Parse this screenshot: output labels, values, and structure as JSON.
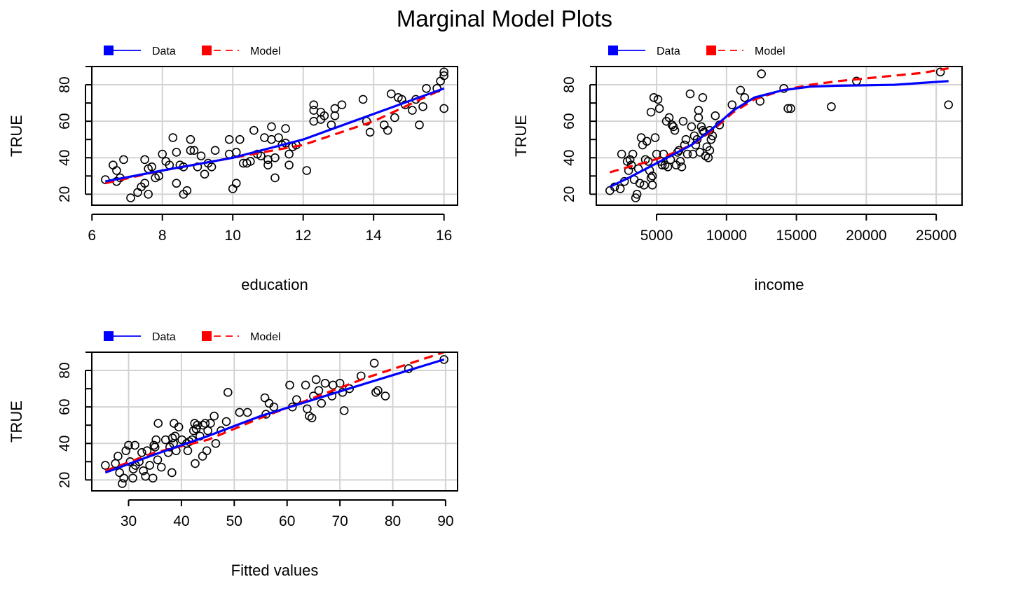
{
  "title": "Marginal Model Plots",
  "legend": {
    "data_label": "Data",
    "model_label": "Model",
    "data_color": "#0000ff",
    "model_color": "#ff0000"
  },
  "chart_data": [
    {
      "type": "scatter",
      "xlabel": "education",
      "ylabel": "TRUE",
      "xlim": [
        6.38,
        16.0
      ],
      "ylim": [
        14,
        90
      ],
      "xticks": [
        6,
        8,
        10,
        12,
        14,
        16
      ],
      "xtick_labels": [
        "6",
        "8",
        "10",
        "12",
        "14",
        "16"
      ],
      "yticks": [
        20,
        40,
        60,
        80
      ],
      "ytick_labels": [
        "20",
        "40",
        "60",
        "80"
      ],
      "grid": true,
      "legend_position": "top-left",
      "points": [
        [
          6.38,
          28
        ],
        [
          6.6,
          36
        ],
        [
          6.7,
          33
        ],
        [
          6.7,
          27
        ],
        [
          6.8,
          29
        ],
        [
          6.9,
          39
        ],
        [
          7.1,
          18
        ],
        [
          7.3,
          21
        ],
        [
          7.4,
          24
        ],
        [
          7.5,
          26
        ],
        [
          7.5,
          39
        ],
        [
          7.6,
          34
        ],
        [
          7.6,
          20
        ],
        [
          7.7,
          35
        ],
        [
          7.8,
          29
        ],
        [
          7.9,
          30
        ],
        [
          8.0,
          42
        ],
        [
          8.1,
          38
        ],
        [
          8.2,
          36
        ],
        [
          8.3,
          51
        ],
        [
          8.4,
          43
        ],
        [
          8.4,
          26
        ],
        [
          8.5,
          36
        ],
        [
          8.6,
          35
        ],
        [
          8.6,
          20
        ],
        [
          8.7,
          22
        ],
        [
          8.8,
          44
        ],
        [
          8.8,
          50
        ],
        [
          8.9,
          44
        ],
        [
          9.0,
          35
        ],
        [
          9.1,
          41
        ],
        [
          9.2,
          31
        ],
        [
          9.3,
          37
        ],
        [
          9.4,
          35
        ],
        [
          9.5,
          44
        ],
        [
          9.9,
          42
        ],
        [
          9.9,
          50
        ],
        [
          10.0,
          23
        ],
        [
          10.1,
          26
        ],
        [
          10.1,
          43
        ],
        [
          10.2,
          50
        ],
        [
          10.3,
          37
        ],
        [
          10.4,
          37
        ],
        [
          10.5,
          38
        ],
        [
          10.6,
          55
        ],
        [
          10.7,
          42
        ],
        [
          10.8,
          41
        ],
        [
          10.9,
          51
        ],
        [
          11.0,
          36
        ],
        [
          11.0,
          39
        ],
        [
          11.1,
          57
        ],
        [
          11.1,
          50
        ],
        [
          11.2,
          40
        ],
        [
          11.2,
          29
        ],
        [
          11.3,
          51
        ],
        [
          11.4,
          47
        ],
        [
          11.5,
          48
        ],
        [
          11.5,
          56
        ],
        [
          11.6,
          36
        ],
        [
          11.6,
          42
        ],
        [
          11.7,
          46
        ],
        [
          11.8,
          47
        ],
        [
          12.1,
          33
        ],
        [
          12.3,
          60
        ],
        [
          12.3,
          69
        ],
        [
          12.3,
          66
        ],
        [
          12.5,
          61
        ],
        [
          12.5,
          65
        ],
        [
          12.6,
          63
        ],
        [
          12.8,
          58
        ],
        [
          12.9,
          63
        ],
        [
          12.9,
          67
        ],
        [
          13.1,
          69
        ],
        [
          13.7,
          72
        ],
        [
          13.8,
          60
        ],
        [
          13.9,
          54
        ],
        [
          14.3,
          58
        ],
        [
          14.4,
          55
        ],
        [
          14.5,
          75
        ],
        [
          14.6,
          62
        ],
        [
          14.7,
          73
        ],
        [
          14.8,
          72
        ],
        [
          14.9,
          69
        ],
        [
          15.1,
          66
        ],
        [
          15.2,
          72
        ],
        [
          15.3,
          58
        ],
        [
          15.4,
          68
        ],
        [
          15.5,
          78
        ],
        [
          15.8,
          78
        ],
        [
          15.9,
          82
        ],
        [
          16.0,
          87
        ],
        [
          16.0,
          85
        ],
        [
          16.0,
          67
        ]
      ],
      "series": [
        {
          "name": "Data",
          "x": [
            6.38,
            8,
            10,
            12,
            14,
            16
          ],
          "y": [
            27,
            33,
            40,
            50,
            64,
            78
          ]
        },
        {
          "name": "Model",
          "x": [
            6.38,
            8,
            10,
            12,
            14,
            16
          ],
          "y": [
            26,
            33,
            40,
            47,
            60,
            78
          ]
        }
      ]
    },
    {
      "type": "scatter",
      "xlabel": "income",
      "ylabel": "TRUE",
      "xlim": [
        1656,
        25879
      ],
      "ylim": [
        14,
        90
      ],
      "xticks": [
        5000,
        10000,
        15000,
        20000,
        25000
      ],
      "xtick_labels": [
        "5000",
        "10000",
        "15000",
        "20000",
        "25000"
      ],
      "yticks": [
        20,
        40,
        60,
        80
      ],
      "ytick_labels": [
        "20",
        "40",
        "60",
        "80"
      ],
      "grid": true,
      "legend_position": "top-left",
      "points": [
        [
          1656,
          22
        ],
        [
          2000,
          24
        ],
        [
          2400,
          23
        ],
        [
          2500,
          42
        ],
        [
          2700,
          27
        ],
        [
          2900,
          38
        ],
        [
          3000,
          33
        ],
        [
          3100,
          39
        ],
        [
          3200,
          36
        ],
        [
          3300,
          42
        ],
        [
          3400,
          28
        ],
        [
          3500,
          18
        ],
        [
          3600,
          20
        ],
        [
          3700,
          34
        ],
        [
          3800,
          26
        ],
        [
          3900,
          51
        ],
        [
          4000,
          47
        ],
        [
          4100,
          25
        ],
        [
          4200,
          39
        ],
        [
          4300,
          49
        ],
        [
          4400,
          38
        ],
        [
          4500,
          33
        ],
        [
          4600,
          65
        ],
        [
          4600,
          29
        ],
        [
          4700,
          25
        ],
        [
          4700,
          30
        ],
        [
          4800,
          73
        ],
        [
          4900,
          51
        ],
        [
          5000,
          42
        ],
        [
          5100,
          72
        ],
        [
          5200,
          67
        ],
        [
          5300,
          38
        ],
        [
          5400,
          36
        ],
        [
          5500,
          42
        ],
        [
          5600,
          36
        ],
        [
          5700,
          60
        ],
        [
          5800,
          35
        ],
        [
          5900,
          62
        ],
        [
          6000,
          39
        ],
        [
          6100,
          58
        ],
        [
          6200,
          57
        ],
        [
          6300,
          55
        ],
        [
          6400,
          36
        ],
        [
          6500,
          43
        ],
        [
          6600,
          44
        ],
        [
          6700,
          38
        ],
        [
          6800,
          35
        ],
        [
          6900,
          60
        ],
        [
          7000,
          47
        ],
        [
          7100,
          50
        ],
        [
          7200,
          42
        ],
        [
          7400,
          75
        ],
        [
          7500,
          57
        ],
        [
          7600,
          42
        ],
        [
          7700,
          52
        ],
        [
          7800,
          47
        ],
        [
          7900,
          50
        ],
        [
          8000,
          66
        ],
        [
          8000,
          62
        ],
        [
          8100,
          43
        ],
        [
          8200,
          57
        ],
        [
          8300,
          55
        ],
        [
          8300,
          73
        ],
        [
          8400,
          54
        ],
        [
          8500,
          41
        ],
        [
          8600,
          46
        ],
        [
          8700,
          40
        ],
        [
          8800,
          55
        ],
        [
          8800,
          44
        ],
        [
          8900,
          50
        ],
        [
          9000,
          52
        ],
        [
          9200,
          63
        ],
        [
          9500,
          58
        ],
        [
          10400,
          69
        ],
        [
          11000,
          77
        ],
        [
          11300,
          73
        ],
        [
          12400,
          71
        ],
        [
          12500,
          86
        ],
        [
          14100,
          78
        ],
        [
          14400,
          67
        ],
        [
          14600,
          67
        ],
        [
          17500,
          68
        ],
        [
          19300,
          82
        ],
        [
          25300,
          87
        ],
        [
          25879,
          69
        ]
      ],
      "series": [
        {
          "name": "Data",
          "x": [
            1656,
            3000,
            4500,
            6000,
            7500,
            9000,
            10500,
            12000,
            14000,
            16000,
            18000,
            20000,
            22000,
            24000,
            25879
          ],
          "y": [
            24,
            29,
            35,
            41,
            47,
            56,
            66,
            73,
            77,
            79,
            79.5,
            79.7,
            80,
            81,
            82
          ]
        },
        {
          "name": "Model",
          "x": [
            1656,
            3000,
            4500,
            6000,
            7500,
            9000,
            10500,
            12000,
            14000,
            16000,
            18000,
            20000,
            22000,
            24000,
            25879
          ],
          "y": [
            32,
            35,
            38,
            42,
            47,
            55,
            65,
            72,
            77,
            80,
            82,
            83.5,
            85,
            86.5,
            89
          ]
        }
      ]
    },
    {
      "type": "scatter",
      "xlabel": "Fitted values",
      "ylabel": "TRUE",
      "xlim": [
        25.6,
        89.7
      ],
      "ylim": [
        14,
        90
      ],
      "xticks": [
        30,
        40,
        50,
        60,
        70,
        80,
        90
      ],
      "xtick_labels": [
        "30",
        "40",
        "50",
        "60",
        "70",
        "80",
        "90"
      ],
      "yticks": [
        20,
        40,
        60,
        80
      ],
      "ytick_labels": [
        "20",
        "40",
        "60",
        "80"
      ],
      "grid": true,
      "legend_position": "top-left",
      "points": [
        [
          25.6,
          28
        ],
        [
          27.5,
          29
        ],
        [
          28,
          33
        ],
        [
          28.3,
          24
        ],
        [
          28.8,
          18
        ],
        [
          29.1,
          21
        ],
        [
          29.5,
          36
        ],
        [
          30,
          39
        ],
        [
          30.3,
          30
        ],
        [
          30.8,
          21
        ],
        [
          30.9,
          26
        ],
        [
          31.2,
          39
        ],
        [
          31.3,
          28
        ],
        [
          32,
          30
        ],
        [
          32.5,
          35
        ],
        [
          32.8,
          25
        ],
        [
          33.2,
          22
        ],
        [
          33.5,
          36
        ],
        [
          34,
          28
        ],
        [
          34.6,
          21
        ],
        [
          34.8,
          39
        ],
        [
          35,
          38
        ],
        [
          35.2,
          42
        ],
        [
          35.5,
          31
        ],
        [
          35.6,
          51
        ],
        [
          36.2,
          27
        ],
        [
          37,
          42
        ],
        [
          37.5,
          35
        ],
        [
          37.8,
          38
        ],
        [
          38.2,
          24
        ],
        [
          38.3,
          43
        ],
        [
          38.5,
          40
        ],
        [
          38.6,
          51
        ],
        [
          38.8,
          44
        ],
        [
          39,
          36
        ],
        [
          39.5,
          49
        ],
        [
          40.1,
          42
        ],
        [
          41,
          40
        ],
        [
          41.2,
          36
        ],
        [
          41.5,
          41
        ],
        [
          42,
          42
        ],
        [
          42.3,
          47
        ],
        [
          42.5,
          51
        ],
        [
          42.6,
          29
        ],
        [
          42.8,
          48
        ],
        [
          43,
          50
        ],
        [
          43.5,
          44
        ],
        [
          44,
          33
        ],
        [
          44.1,
          50
        ],
        [
          44.5,
          51
        ],
        [
          44.8,
          36
        ],
        [
          45,
          47
        ],
        [
          45.5,
          51
        ],
        [
          46.2,
          55
        ],
        [
          46.5,
          40
        ],
        [
          47.5,
          47
        ],
        [
          48.5,
          52
        ],
        [
          48.8,
          68
        ],
        [
          51,
          57
        ],
        [
          52.5,
          57
        ],
        [
          55.8,
          65
        ],
        [
          56,
          56
        ],
        [
          56.6,
          62
        ],
        [
          57.5,
          60
        ],
        [
          60.5,
          72
        ],
        [
          61,
          60
        ],
        [
          61.8,
          64
        ],
        [
          63.5,
          72
        ],
        [
          63.8,
          59
        ],
        [
          64.2,
          55
        ],
        [
          64.7,
          54
        ],
        [
          65,
          66
        ],
        [
          65.5,
          75
        ],
        [
          66,
          69
        ],
        [
          66.5,
          62
        ],
        [
          67.2,
          73
        ],
        [
          68.5,
          66
        ],
        [
          68.7,
          72
        ],
        [
          70,
          73
        ],
        [
          70.5,
          68
        ],
        [
          70.8,
          58
        ],
        [
          71.8,
          70
        ],
        [
          74,
          77
        ],
        [
          76.5,
          84
        ],
        [
          76.8,
          68
        ],
        [
          77.2,
          69
        ],
        [
          78.6,
          66
        ],
        [
          83,
          81
        ],
        [
          89.7,
          86
        ]
      ],
      "series": [
        {
          "name": "Data",
          "x": [
            25.6,
            35,
            45,
            55,
            65,
            75,
            89.7
          ],
          "y": [
            24,
            34,
            44,
            55,
            64,
            73,
            86
          ]
        },
        {
          "name": "Model",
          "x": [
            25.6,
            35,
            45,
            55,
            65,
            75,
            89.7
          ],
          "y": [
            25,
            35,
            42,
            54,
            65,
            76,
            90
          ]
        }
      ]
    }
  ]
}
